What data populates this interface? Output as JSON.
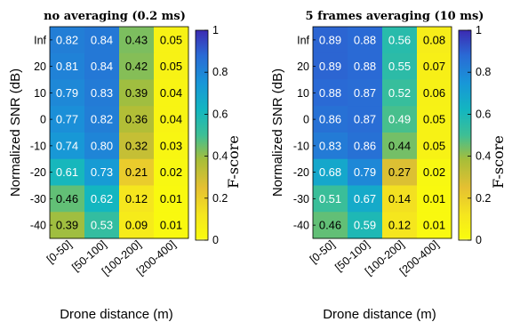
{
  "chart_data": [
    {
      "type": "heatmap",
      "title": "no averaging (0.2 ms)",
      "xlabel": "Drone distance (m)",
      "ylabel": "Normalized SNR (dB)",
      "x_categories": [
        "[0-50]",
        "[50-100]",
        "[100-200]",
        "[200-400]"
      ],
      "y_categories": [
        "Inf",
        "20",
        "10",
        "0",
        "-10",
        "-20",
        "-30",
        "-40"
      ],
      "values": [
        [
          0.82,
          0.84,
          0.43,
          0.05
        ],
        [
          0.81,
          0.84,
          0.42,
          0.05
        ],
        [
          0.79,
          0.83,
          0.39,
          0.04
        ],
        [
          0.77,
          0.82,
          0.36,
          0.04
        ],
        [
          0.74,
          0.8,
          0.32,
          0.03
        ],
        [
          0.61,
          0.73,
          0.21,
          0.02
        ],
        [
          0.46,
          0.62,
          0.12,
          0.01
        ],
        [
          0.39,
          0.53,
          0.09,
          0.01
        ]
      ],
      "colorbar": {
        "label": "F-score",
        "range": [
          0,
          1
        ],
        "ticks": [
          "0",
          "0.2",
          "0.4",
          "0.6",
          "0.8",
          "1"
        ]
      },
      "colormap": "parula"
    },
    {
      "type": "heatmap",
      "title": "5 frames averaging (10 ms)",
      "xlabel": "Drone distance (m)",
      "ylabel": "Normalized SNR (dB)",
      "x_categories": [
        "[0-50]",
        "[50-100]",
        "[100-200]",
        "[200-400]"
      ],
      "y_categories": [
        "Inf",
        "20",
        "10",
        "0",
        "-10",
        "-20",
        "-30",
        "-40"
      ],
      "values": [
        [
          0.89,
          0.88,
          0.56,
          0.08
        ],
        [
          0.89,
          0.88,
          0.55,
          0.07
        ],
        [
          0.88,
          0.87,
          0.52,
          0.06
        ],
        [
          0.86,
          0.87,
          0.49,
          0.05
        ],
        [
          0.83,
          0.86,
          0.44,
          0.05
        ],
        [
          0.68,
          0.79,
          0.27,
          0.02
        ],
        [
          0.51,
          0.67,
          0.14,
          0.01
        ],
        [
          0.46,
          0.59,
          0.12,
          0.01
        ]
      ],
      "colorbar": {
        "label": "F-score",
        "range": [
          0,
          1
        ],
        "ticks": [
          "0",
          "0.2",
          "0.4",
          "0.6",
          "0.8",
          "1"
        ]
      },
      "colormap": "parula"
    }
  ]
}
